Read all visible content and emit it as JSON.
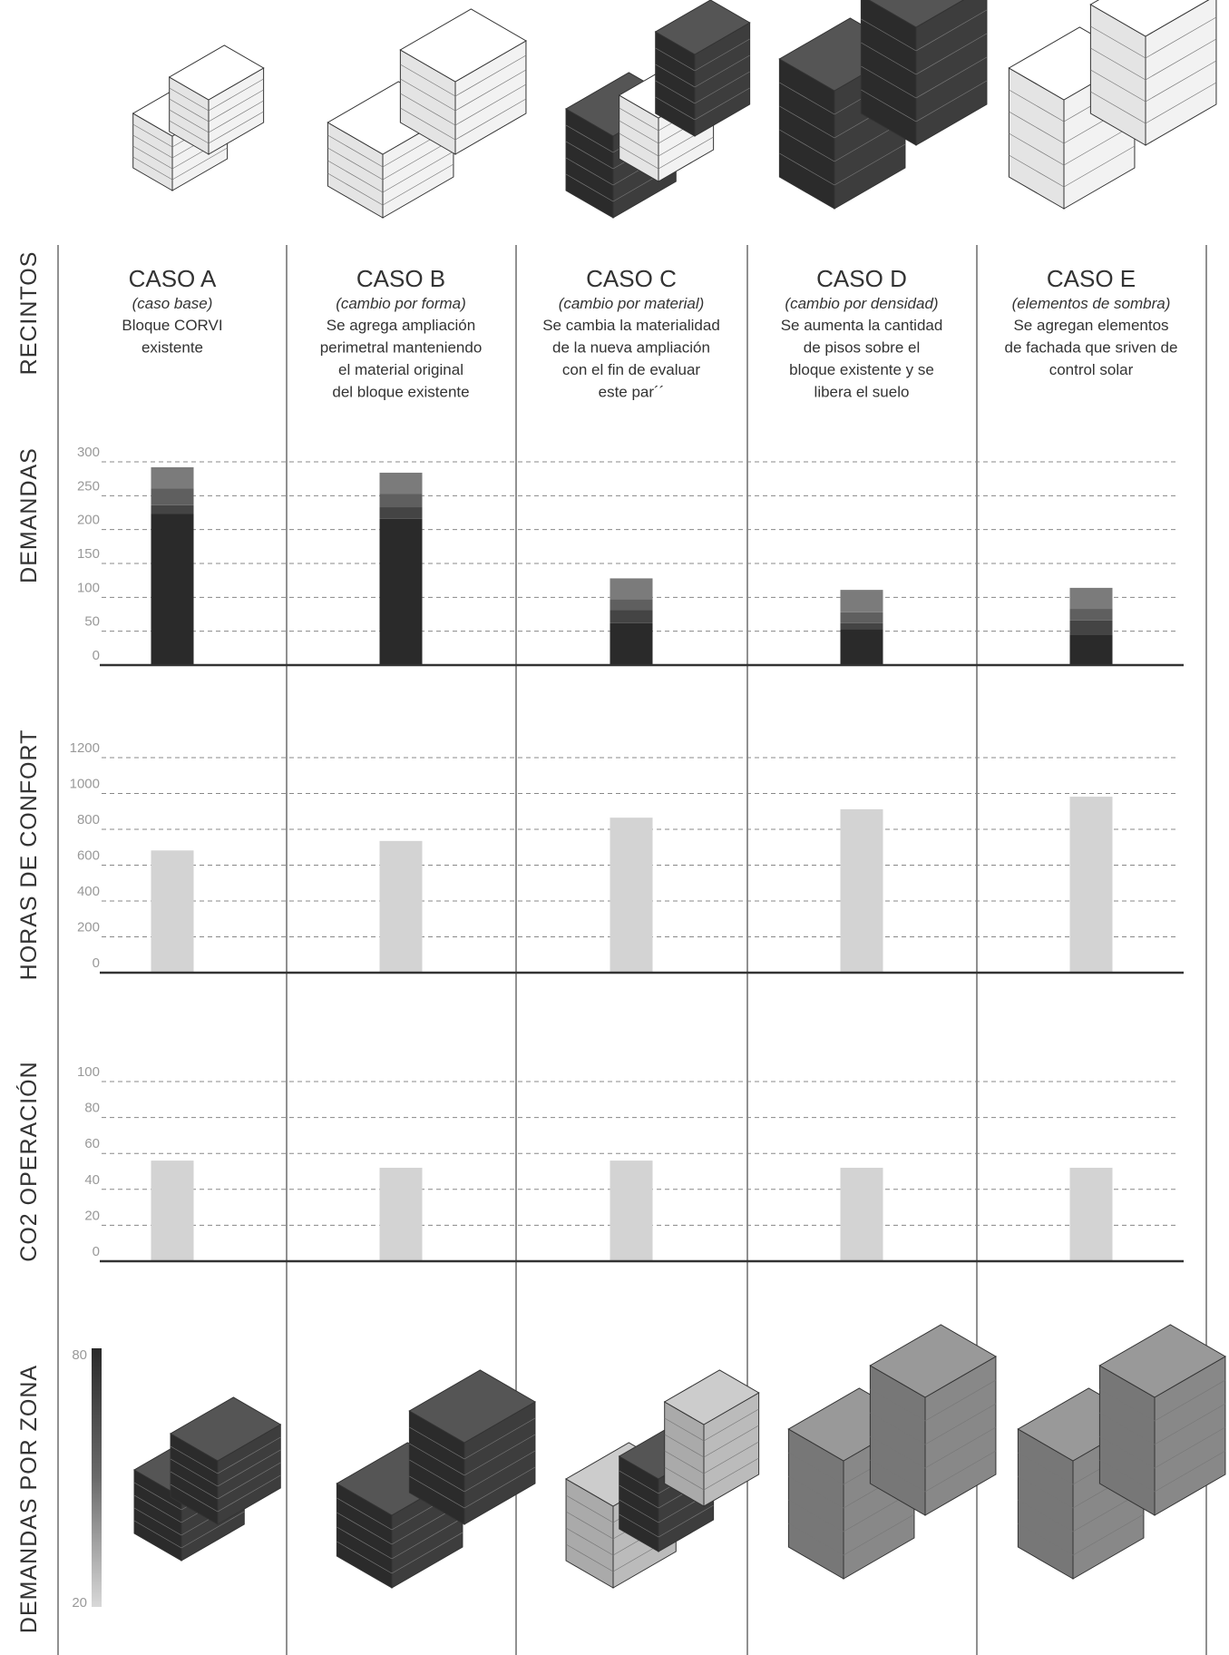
{
  "row_labels": [
    "RECINTOS",
    "DEMANDAS",
    "HORAS DE CONFORT",
    "CO2 OPERACIÓN",
    "DEMANDAS POR ZONA"
  ],
  "cases": [
    {
      "title": "CASO A",
      "subtitle": "(caso base)",
      "description": [
        "Bloque CORVI",
        "existente"
      ]
    },
    {
      "title": "CASO B",
      "subtitle": "(cambio por forma)",
      "description": [
        "Se agrega ampliación",
        "perimetral manteniendo",
        "el material original",
        "del bloque existente"
      ]
    },
    {
      "title": "CASO C",
      "subtitle": "(cambio por material)",
      "description": [
        "Se cambia la materialidad",
        "de la nueva ampliación",
        "con el fin de evaluar",
        "este par´´"
      ]
    },
    {
      "title": "CASO D",
      "subtitle": "(cambio por densidad)",
      "description": [
        "Se aumenta la cantidad",
        "de pisos sobre el",
        "bloque existente y se",
        "libera el suelo"
      ]
    },
    {
      "title": "CASO E",
      "subtitle": "(elementos de sombra)",
      "description": [
        "Se agregan elementos",
        "de fachada que sriven de",
        "control solar"
      ]
    }
  ],
  "chart_data": [
    {
      "type": "bar",
      "stacked": true,
      "ylim": [
        0,
        300
      ],
      "yticks": [
        0,
        50,
        100,
        150,
        200,
        250,
        300
      ],
      "grid": true,
      "series": [
        {
          "color": "#2a2a2a",
          "values": [
            223,
            216,
            62,
            53,
            45
          ]
        },
        {
          "color": "#444444",
          "values": [
            13,
            17,
            19,
            9,
            21
          ]
        },
        {
          "color": "#5f5f5f",
          "values": [
            25,
            20,
            16,
            16,
            17
          ]
        },
        {
          "color": "#7b7b7b",
          "values": [
            31,
            31,
            31,
            33,
            31
          ]
        }
      ]
    },
    {
      "type": "bar",
      "ylim": [
        0,
        1200
      ],
      "yticks": [
        0,
        200,
        400,
        600,
        800,
        1000,
        1200
      ],
      "grid": true,
      "color": "#d3d3d3",
      "values": [
        682,
        735,
        865,
        912,
        982
      ]
    },
    {
      "type": "bar",
      "ylim": [
        0,
        100
      ],
      "yticks": [
        0,
        20,
        40,
        60,
        80,
        100
      ],
      "grid": true,
      "color": "#d3d3d3",
      "values": [
        56,
        52,
        56,
        52,
        52
      ]
    }
  ],
  "zone_legend": {
    "max": 80,
    "min": 20
  }
}
